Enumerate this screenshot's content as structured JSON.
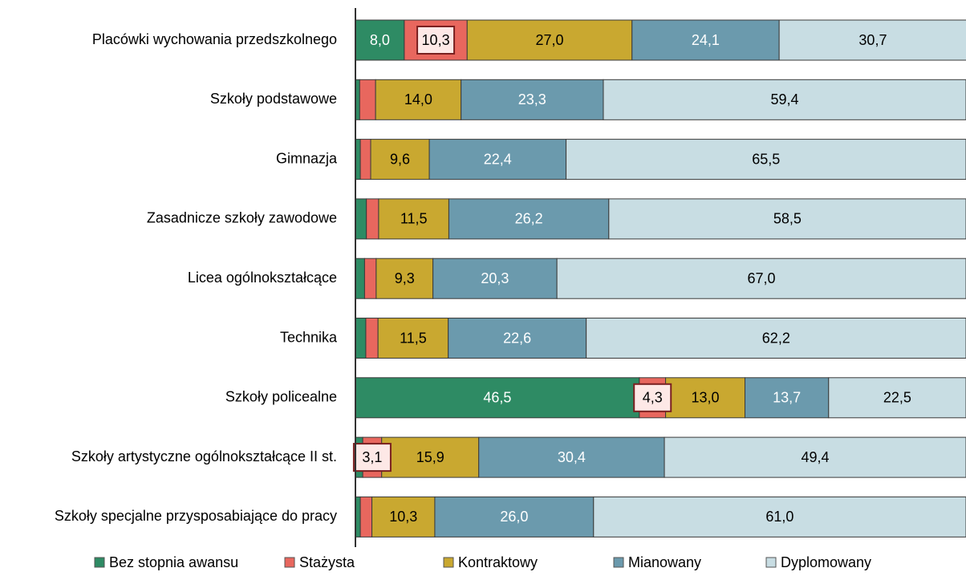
{
  "chart_data": {
    "type": "stacked-barh",
    "categories": [
      "Placówki wychowania przedszkolnego",
      "Szkoły podstawowe",
      "Gimnazja",
      "Zasadnicze szkoły zawodowe",
      "Licea ogólnokształcące",
      "Technika",
      "Szkoły policealne",
      "Szkoły artystyczne ogólnokształcące II st.",
      "Szkoły specjalne przysposabiające do pracy"
    ],
    "xlim": [
      0,
      100
    ],
    "legend": "bottom",
    "series": [
      {
        "name": "Bez stopnia awansu",
        "color": "#2e8b64",
        "values": [
          8.0,
          0.7,
          0.8,
          1.8,
          1.5,
          1.7,
          46.5,
          1.2,
          0.8
        ],
        "value_labels": [
          "8,0",
          null,
          null,
          null,
          null,
          null,
          "46,5",
          null,
          null
        ]
      },
      {
        "name": "Stażysta",
        "color": "#e8675e",
        "values": [
          10.3,
          2.6,
          1.7,
          2.0,
          1.9,
          2.0,
          4.3,
          3.1,
          1.9
        ],
        "value_labels": [
          "10,3",
          null,
          null,
          null,
          null,
          null,
          "4,3",
          "3,1",
          null
        ]
      },
      {
        "name": "Kontraktowy",
        "color": "#c9a830",
        "values": [
          27.0,
          14.0,
          9.6,
          11.5,
          9.3,
          11.5,
          13.0,
          15.9,
          10.3
        ],
        "value_labels": [
          "27,0",
          "14,0",
          "9,6",
          "11,5",
          "9,3",
          "11,5",
          "13,0",
          "15,9",
          "10,3"
        ]
      },
      {
        "name": "Mianowany",
        "color": "#6b9aad",
        "values": [
          24.1,
          23.3,
          22.4,
          26.2,
          20.3,
          22.6,
          13.7,
          30.4,
          26.0
        ],
        "value_labels": [
          "24,1",
          "23,3",
          "22,4",
          "26,2",
          "20,3",
          "22,6",
          "13,7",
          "30,4",
          "26,0"
        ]
      },
      {
        "name": "Dyplomowany",
        "color": "#c8dde3",
        "values": [
          30.7,
          59.4,
          65.5,
          58.5,
          67.0,
          62.2,
          22.5,
          49.4,
          61.0
        ],
        "value_labels": [
          "30,7",
          "59,4",
          "65,5",
          "58,5",
          "67,0",
          "62,2",
          "22,5",
          "49,4",
          "61,0"
        ]
      }
    ]
  }
}
